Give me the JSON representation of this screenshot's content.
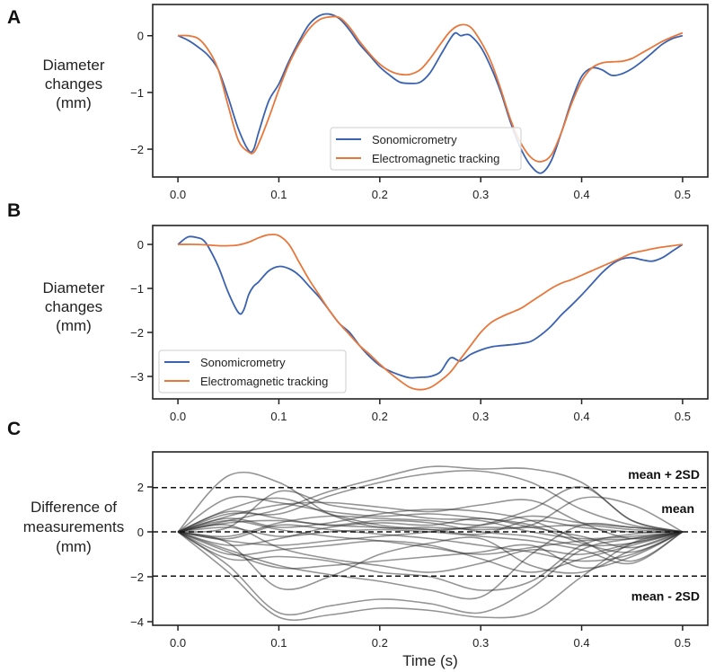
{
  "chart_data": [
    {
      "panel": "A",
      "type": "line",
      "ylabel": [
        "Diameter",
        "changes",
        "(mm)"
      ],
      "xlabel": "",
      "xlim": [
        -0.025,
        0.525
      ],
      "ylim": [
        -2.49,
        0.55
      ],
      "xticks": [
        0.0,
        0.1,
        0.2,
        0.3,
        0.4,
        0.5
      ],
      "yticks": [
        0,
        -1,
        -2
      ],
      "legend": {
        "position": "lower-center",
        "entries": [
          "Sonomicrometry",
          "Electromagnetic tracking"
        ]
      },
      "series": [
        {
          "name": "Sonomicrometry",
          "color": "#3b62b1",
          "x": [
            0,
            0.01,
            0.02,
            0.03,
            0.04,
            0.05,
            0.06,
            0.07,
            0.075,
            0.08,
            0.09,
            0.1,
            0.11,
            0.12,
            0.13,
            0.14,
            0.15,
            0.16,
            0.17,
            0.18,
            0.19,
            0.2,
            0.21,
            0.22,
            0.23,
            0.24,
            0.25,
            0.26,
            0.27,
            0.275,
            0.28,
            0.285,
            0.29,
            0.3,
            0.31,
            0.32,
            0.33,
            0.34,
            0.35,
            0.36,
            0.37,
            0.38,
            0.39,
            0.4,
            0.41,
            0.42,
            0.43,
            0.44,
            0.45,
            0.46,
            0.47,
            0.48,
            0.49,
            0.5
          ],
          "y": [
            0,
            -0.08,
            -0.2,
            -0.35,
            -0.6,
            -1.1,
            -1.65,
            -2.02,
            -2.0,
            -1.7,
            -1.15,
            -0.85,
            -0.45,
            -0.1,
            0.2,
            0.35,
            0.38,
            0.3,
            0.1,
            -0.15,
            -0.35,
            -0.55,
            -0.7,
            -0.82,
            -0.84,
            -0.82,
            -0.65,
            -0.35,
            -0.05,
            0.05,
            0.0,
            0.02,
            0.0,
            -0.2,
            -0.55,
            -1.0,
            -1.55,
            -2.0,
            -2.3,
            -2.42,
            -2.2,
            -1.7,
            -1.15,
            -0.72,
            -0.57,
            -0.6,
            -0.7,
            -0.67,
            -0.58,
            -0.45,
            -0.3,
            -0.15,
            -0.05,
            0.0
          ]
        },
        {
          "name": "Electromagnetic tracking",
          "color": "#e8773b",
          "x": [
            0,
            0.01,
            0.02,
            0.03,
            0.04,
            0.05,
            0.06,
            0.07,
            0.075,
            0.08,
            0.09,
            0.1,
            0.11,
            0.12,
            0.13,
            0.14,
            0.15,
            0.16,
            0.17,
            0.18,
            0.19,
            0.2,
            0.21,
            0.22,
            0.23,
            0.24,
            0.25,
            0.26,
            0.27,
            0.28,
            0.29,
            0.3,
            0.31,
            0.32,
            0.33,
            0.34,
            0.35,
            0.36,
            0.37,
            0.38,
            0.39,
            0.4,
            0.41,
            0.42,
            0.43,
            0.44,
            0.45,
            0.46,
            0.47,
            0.48,
            0.49,
            0.5
          ],
          "y": [
            0,
            0.0,
            -0.05,
            -0.25,
            -0.6,
            -1.25,
            -1.85,
            -2.05,
            -2.06,
            -1.9,
            -1.45,
            -0.95,
            -0.5,
            -0.15,
            0.12,
            0.28,
            0.33,
            0.32,
            0.15,
            -0.1,
            -0.32,
            -0.5,
            -0.62,
            -0.68,
            -0.68,
            -0.6,
            -0.4,
            -0.15,
            0.08,
            0.19,
            0.15,
            -0.1,
            -0.45,
            -0.95,
            -1.5,
            -1.9,
            -2.15,
            -2.22,
            -2.1,
            -1.7,
            -1.2,
            -0.8,
            -0.57,
            -0.48,
            -0.46,
            -0.45,
            -0.4,
            -0.3,
            -0.2,
            -0.1,
            -0.02,
            0.05
          ]
        }
      ]
    },
    {
      "panel": "B",
      "type": "line",
      "ylabel": [
        "Diameter",
        "changes",
        "(mm)"
      ],
      "xlabel": "",
      "xlim": [
        -0.025,
        0.525
      ],
      "ylim": [
        -3.51,
        0.43
      ],
      "xticks": [
        0.0,
        0.1,
        0.2,
        0.3,
        0.4,
        0.5
      ],
      "yticks": [
        0,
        -1,
        -2,
        -3
      ],
      "legend": {
        "position": "lower-left",
        "entries": [
          "Sonomicrometry",
          "Electromagnetic tracking"
        ]
      },
      "series": [
        {
          "name": "Sonomicrometry",
          "color": "#3b62b1",
          "x": [
            0,
            0.01,
            0.02,
            0.025,
            0.03,
            0.04,
            0.05,
            0.06,
            0.065,
            0.07,
            0.075,
            0.08,
            0.09,
            0.1,
            0.11,
            0.12,
            0.13,
            0.14,
            0.15,
            0.16,
            0.17,
            0.18,
            0.19,
            0.2,
            0.21,
            0.22,
            0.23,
            0.24,
            0.25,
            0.26,
            0.27,
            0.28,
            0.29,
            0.3,
            0.31,
            0.32,
            0.33,
            0.34,
            0.35,
            0.36,
            0.37,
            0.38,
            0.39,
            0.4,
            0.41,
            0.42,
            0.43,
            0.44,
            0.45,
            0.46,
            0.47,
            0.48,
            0.49,
            0.5
          ],
          "y": [
            0,
            0.17,
            0.15,
            0.1,
            -0.05,
            -0.5,
            -1.1,
            -1.55,
            -1.5,
            -1.15,
            -0.95,
            -0.85,
            -0.6,
            -0.5,
            -0.55,
            -0.7,
            -0.95,
            -1.2,
            -1.5,
            -1.8,
            -2.0,
            -2.3,
            -2.55,
            -2.75,
            -2.88,
            -2.97,
            -3.03,
            -3.02,
            -3.0,
            -2.9,
            -2.58,
            -2.65,
            -2.5,
            -2.4,
            -2.33,
            -2.3,
            -2.28,
            -2.25,
            -2.2,
            -2.05,
            -1.85,
            -1.6,
            -1.38,
            -1.15,
            -0.9,
            -0.65,
            -0.45,
            -0.33,
            -0.3,
            -0.35,
            -0.38,
            -0.3,
            -0.15,
            0.0
          ]
        },
        {
          "name": "Electromagnetic tracking",
          "color": "#e8773b",
          "x": [
            0,
            0.02,
            0.04,
            0.05,
            0.06,
            0.07,
            0.08,
            0.09,
            0.1,
            0.11,
            0.12,
            0.13,
            0.14,
            0.15,
            0.16,
            0.17,
            0.18,
            0.19,
            0.2,
            0.21,
            0.22,
            0.23,
            0.24,
            0.25,
            0.26,
            0.27,
            0.28,
            0.29,
            0.3,
            0.31,
            0.32,
            0.33,
            0.34,
            0.35,
            0.36,
            0.37,
            0.38,
            0.39,
            0.4,
            0.41,
            0.42,
            0.43,
            0.44,
            0.45,
            0.46,
            0.47,
            0.48,
            0.49,
            0.5
          ],
          "y": [
            0,
            0,
            -0.03,
            -0.03,
            -0.01,
            0.05,
            0.15,
            0.22,
            0.2,
            0.0,
            -0.4,
            -0.8,
            -1.15,
            -1.5,
            -1.8,
            -2.05,
            -2.3,
            -2.5,
            -2.72,
            -2.92,
            -3.1,
            -3.25,
            -3.3,
            -3.25,
            -3.1,
            -2.9,
            -2.6,
            -2.3,
            -2.0,
            -1.78,
            -1.65,
            -1.55,
            -1.45,
            -1.3,
            -1.15,
            -1.0,
            -0.88,
            -0.8,
            -0.7,
            -0.6,
            -0.5,
            -0.4,
            -0.3,
            -0.2,
            -0.15,
            -0.1,
            -0.06,
            -0.03,
            0.0
          ]
        }
      ]
    },
    {
      "panel": "C",
      "type": "line",
      "ylabel": [
        "Difference of",
        "measurements",
        "(mm)"
      ],
      "xlabel": "Time (s)",
      "xlim": [
        -0.025,
        0.525
      ],
      "ylim": [
        -4.16,
        3.56
      ],
      "xticks": [
        0.0,
        0.1,
        0.2,
        0.3,
        0.4,
        0.5
      ],
      "yticks": [
        2,
        0,
        -2,
        -4
      ],
      "reference_lines": [
        {
          "label": "mean + 2SD",
          "y": 1.97
        },
        {
          "label": "mean",
          "y": 0
        },
        {
          "label": "mean - 2SD",
          "y": -1.97
        }
      ],
      "trace_color": "#2a2a2a",
      "trace_x": [
        0,
        0.05,
        0.1,
        0.15,
        0.2,
        0.25,
        0.3,
        0.35,
        0.4,
        0.45,
        0.5
      ],
      "traces": [
        [
          0,
          2.5,
          2.2,
          0.8,
          0.2,
          0.2,
          0.1,
          0.2,
          0.3,
          0.1,
          0
        ],
        [
          0,
          -1.5,
          -3.6,
          -3.3,
          -3.0,
          -3.2,
          -3.6,
          -2.5,
          -0.8,
          -0.3,
          0
        ],
        [
          0,
          -1.8,
          -3.8,
          -3.7,
          -3.4,
          -3.5,
          -3.8,
          -3.6,
          -2.0,
          -0.5,
          0
        ],
        [
          0,
          0.8,
          0.8,
          1.6,
          2.2,
          2.6,
          2.7,
          2.2,
          1.0,
          0.3,
          0
        ],
        [
          0,
          0.5,
          1.0,
          1.8,
          2.4,
          2.9,
          2.8,
          2.8,
          2.2,
          0.5,
          0
        ],
        [
          0,
          1.5,
          1.3,
          0.9,
          0.7,
          0.8,
          0.6,
          0.3,
          -0.5,
          -0.9,
          0
        ],
        [
          0,
          -0.8,
          -1.5,
          -1.9,
          -2.2,
          -2.6,
          -2.9,
          -1.0,
          0.3,
          0.2,
          0
        ],
        [
          0,
          0.3,
          -0.7,
          -1.2,
          -1.5,
          -1.8,
          -1.4,
          -0.8,
          -1.0,
          -0.5,
          0
        ],
        [
          0,
          -0.5,
          -2.5,
          -2.0,
          -1.0,
          -0.5,
          -0.3,
          -1.5,
          -1.8,
          -0.8,
          0
        ],
        [
          0,
          0.6,
          0.2,
          0.4,
          0.8,
          1.0,
          0.9,
          0.5,
          -0.4,
          -1.3,
          0
        ],
        [
          0,
          -0.4,
          -0.6,
          -0.4,
          -0.2,
          0.0,
          0.3,
          1.0,
          2.0,
          0.5,
          0
        ],
        [
          0,
          0.4,
          0.5,
          0.3,
          0.2,
          0.1,
          0.2,
          0.3,
          1.5,
          1.2,
          0
        ],
        [
          0,
          -0.3,
          0.3,
          0.1,
          -0.1,
          -0.3,
          -0.6,
          -0.9,
          -1.3,
          -1.0,
          0
        ],
        [
          0,
          0.2,
          -0.2,
          0.0,
          0.1,
          0.0,
          -0.2,
          -0.4,
          -0.8,
          -1.4,
          0
        ],
        [
          0,
          0.9,
          0.6,
          0.3,
          0.5,
          0.4,
          0.0,
          -0.2,
          -0.6,
          -0.5,
          0
        ],
        [
          0,
          -1.0,
          -0.8,
          -0.6,
          -0.4,
          -0.6,
          -1.2,
          -1.8,
          -1.2,
          -0.6,
          0
        ],
        [
          0,
          0.5,
          0.1,
          -0.2,
          -0.4,
          -0.7,
          -1.0,
          -0.7,
          -0.4,
          -0.3,
          0
        ],
        [
          0,
          -0.2,
          0.4,
          0.7,
          0.6,
          0.5,
          0.3,
          0.7,
          0.4,
          0.2,
          0
        ],
        [
          0,
          1.0,
          1.5,
          0.8,
          0.3,
          0.1,
          -0.1,
          0.5,
          0.2,
          0.0,
          0
        ],
        [
          0,
          -0.6,
          -0.3,
          0.2,
          0.4,
          0.3,
          0.6,
          0.2,
          -0.2,
          -0.7,
          0
        ],
        [
          0,
          0.2,
          1.8,
          1.2,
          0.9,
          0.6,
          0.5,
          0.0,
          -0.3,
          -0.2,
          0
        ],
        [
          0,
          -1.2,
          -1.1,
          -1.3,
          -1.8,
          -2.0,
          -2.6,
          -2.2,
          -0.6,
          -0.1,
          0
        ],
        [
          0,
          0.7,
          1.2,
          1.3,
          1.1,
          0.9,
          1.2,
          1.4,
          0.4,
          -0.3,
          0
        ],
        [
          0,
          -0.9,
          -1.6,
          -1.5,
          -1.3,
          -1.1,
          -0.9,
          -0.6,
          -1.6,
          -1.1,
          0
        ]
      ]
    }
  ]
}
